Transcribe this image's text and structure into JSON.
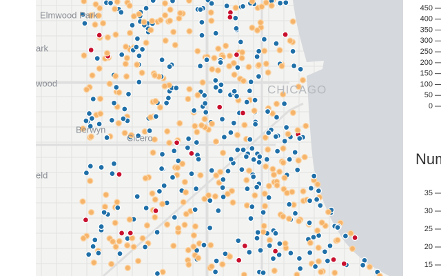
{
  "map": {
    "labels": [
      "Elmwood Park",
      "ark",
      "wood",
      "Berwyn",
      "Cicero",
      "eld",
      "CHICAGO"
    ]
  },
  "charts": [
    {
      "ylim": [
        0,
        450
      ],
      "yticks": [
        450,
        400,
        350,
        300,
        250,
        200,
        150,
        100,
        50,
        0
      ]
    },
    {
      "title": "Num",
      "ylim": [
        15,
        35
      ],
      "yticks": [
        35,
        30,
        25,
        20,
        15
      ]
    }
  ]
}
